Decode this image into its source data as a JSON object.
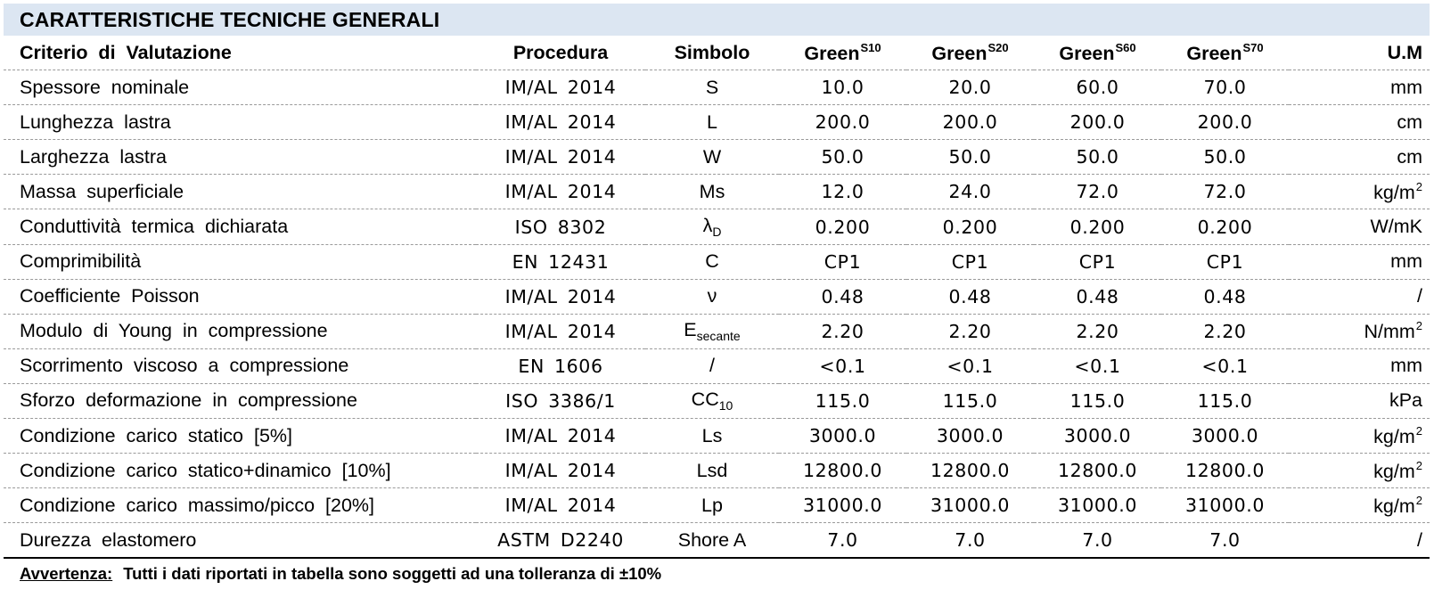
{
  "title": "CARATTERISTICHE TECNICHE GENERALI",
  "header": {
    "criterio": "Criterio di Valutazione",
    "procedura": "Procedura",
    "simbolo": "Simbolo",
    "products": [
      {
        "name": "Green",
        "sup": "S10"
      },
      {
        "name": "Green",
        "sup": "S20"
      },
      {
        "name": "Green",
        "sup": "S60"
      },
      {
        "name": "Green",
        "sup": "S70"
      }
    ],
    "um": "U.M"
  },
  "rows": [
    {
      "criterio": "Spessore nominale",
      "procedura": "IM/AL 2014",
      "simbolo": "S",
      "simbolo_sub": "",
      "values": [
        "10.0",
        "20.0",
        "60.0",
        "70.0"
      ],
      "um": "mm",
      "um_sup": ""
    },
    {
      "criterio": "Lunghezza lastra",
      "procedura": "IM/AL 2014",
      "simbolo": "L",
      "simbolo_sub": "",
      "values": [
        "200.0",
        "200.0",
        "200.0",
        "200.0"
      ],
      "um": "cm",
      "um_sup": ""
    },
    {
      "criterio": "Larghezza lastra",
      "procedura": "IM/AL 2014",
      "simbolo": "W",
      "simbolo_sub": "",
      "values": [
        "50.0",
        "50.0",
        "50.0",
        "50.0"
      ],
      "um": "cm",
      "um_sup": ""
    },
    {
      "criterio": "Massa superficiale",
      "procedura": "IM/AL 2014",
      "simbolo": "Ms",
      "simbolo_sub": "",
      "values": [
        "12.0",
        "24.0",
        "72.0",
        "72.0"
      ],
      "um": "kg/m",
      "um_sup": "2"
    },
    {
      "criterio": "Conduttività termica dichiarata",
      "procedura": "ISO 8302",
      "simbolo": "λ",
      "simbolo_sub": "D",
      "values": [
        "0.200",
        "0.200",
        "0.200",
        "0.200"
      ],
      "um": "W/mK",
      "um_sup": ""
    },
    {
      "criterio": "Comprimibilità",
      "procedura": "EN 12431",
      "simbolo": "C",
      "simbolo_sub": "",
      "values": [
        "CP1",
        "CP1",
        "CP1",
        "CP1"
      ],
      "um": "mm",
      "um_sup": ""
    },
    {
      "criterio": "Coefficiente Poisson",
      "procedura": "IM/AL 2014",
      "simbolo": "ν",
      "simbolo_sub": "",
      "values": [
        "0.48",
        "0.48",
        "0.48",
        "0.48"
      ],
      "um": "/",
      "um_sup": ""
    },
    {
      "criterio": "Modulo di Young in compressione",
      "procedura": "IM/AL 2014",
      "simbolo": "E",
      "simbolo_sub": "secante",
      "values": [
        "2.20",
        "2.20",
        "2.20",
        "2.20"
      ],
      "um": "N/mm",
      "um_sup": "2"
    },
    {
      "criterio": "Scorrimento viscoso a compressione",
      "procedura": "EN 1606",
      "simbolo": "/",
      "simbolo_sub": "",
      "values": [
        "<0.1",
        "<0.1",
        "<0.1",
        "<0.1"
      ],
      "um": "mm",
      "um_sup": ""
    },
    {
      "criterio": "Sforzo deformazione in compressione",
      "procedura": "ISO 3386/1",
      "simbolo": "CC",
      "simbolo_sub": "10",
      "values": [
        "115.0",
        "115.0",
        "115.0",
        "115.0"
      ],
      "um": "kPa",
      "um_sup": ""
    },
    {
      "criterio": "Condizione carico statico [5%]",
      "procedura": "IM/AL 2014",
      "simbolo": "Ls",
      "simbolo_sub": "",
      "values": [
        "3000.0",
        "3000.0",
        "3000.0",
        "3000.0"
      ],
      "um": "kg/m",
      "um_sup": "2"
    },
    {
      "criterio": "Condizione carico statico+dinamico [10%]",
      "procedura": "IM/AL 2014",
      "simbolo": "Lsd",
      "simbolo_sub": "",
      "values": [
        "12800.0",
        "12800.0",
        "12800.0",
        "12800.0"
      ],
      "um": "kg/m",
      "um_sup": "2"
    },
    {
      "criterio": "Condizione carico massimo/picco [20%]",
      "procedura": "IM/AL 2014",
      "simbolo": "Lp",
      "simbolo_sub": "",
      "values": [
        "31000.0",
        "31000.0",
        "31000.0",
        "31000.0"
      ],
      "um": "kg/m",
      "um_sup": "2"
    },
    {
      "criterio": "Durezza elastomero",
      "procedura": "ASTM D2240",
      "simbolo": "Shore A",
      "simbolo_sub": "",
      "values": [
        "7.0",
        "7.0",
        "7.0",
        "7.0"
      ],
      "um": "/",
      "um_sup": ""
    }
  ],
  "note": {
    "label": "Avvertenza",
    "colon": ":",
    "text": "Tutti i dati riportati in tabella sono soggetti ad una tolleranza di ±10%"
  }
}
